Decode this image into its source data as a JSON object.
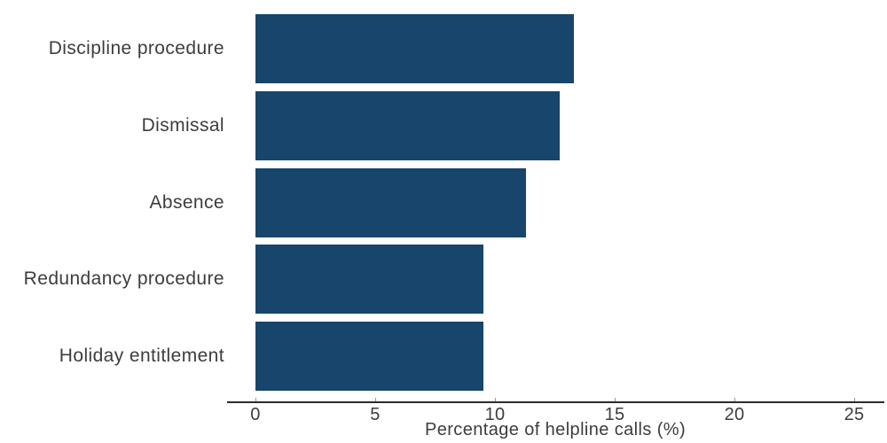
{
  "chart_data": {
    "type": "bar",
    "orientation": "horizontal",
    "title": "",
    "xlabel": "Percentage of helpline calls (%)",
    "ylabel": "",
    "categories": [
      "Discipline procedure",
      "Dismissal",
      "Absence",
      "Redundancy procedure",
      "Holiday entitlement"
    ],
    "values": [
      13.3,
      12.7,
      11.3,
      9.5,
      9.5
    ],
    "xlim": [
      0,
      25
    ],
    "xticks": [
      0,
      5,
      10,
      15,
      20,
      25
    ],
    "grid": false,
    "legend": false,
    "colors": {
      "bar": "#17456b",
      "text": "#3d3d3d",
      "axis": "#2b2b2b",
      "tick": "#999999",
      "background": "#ffffff"
    }
  }
}
